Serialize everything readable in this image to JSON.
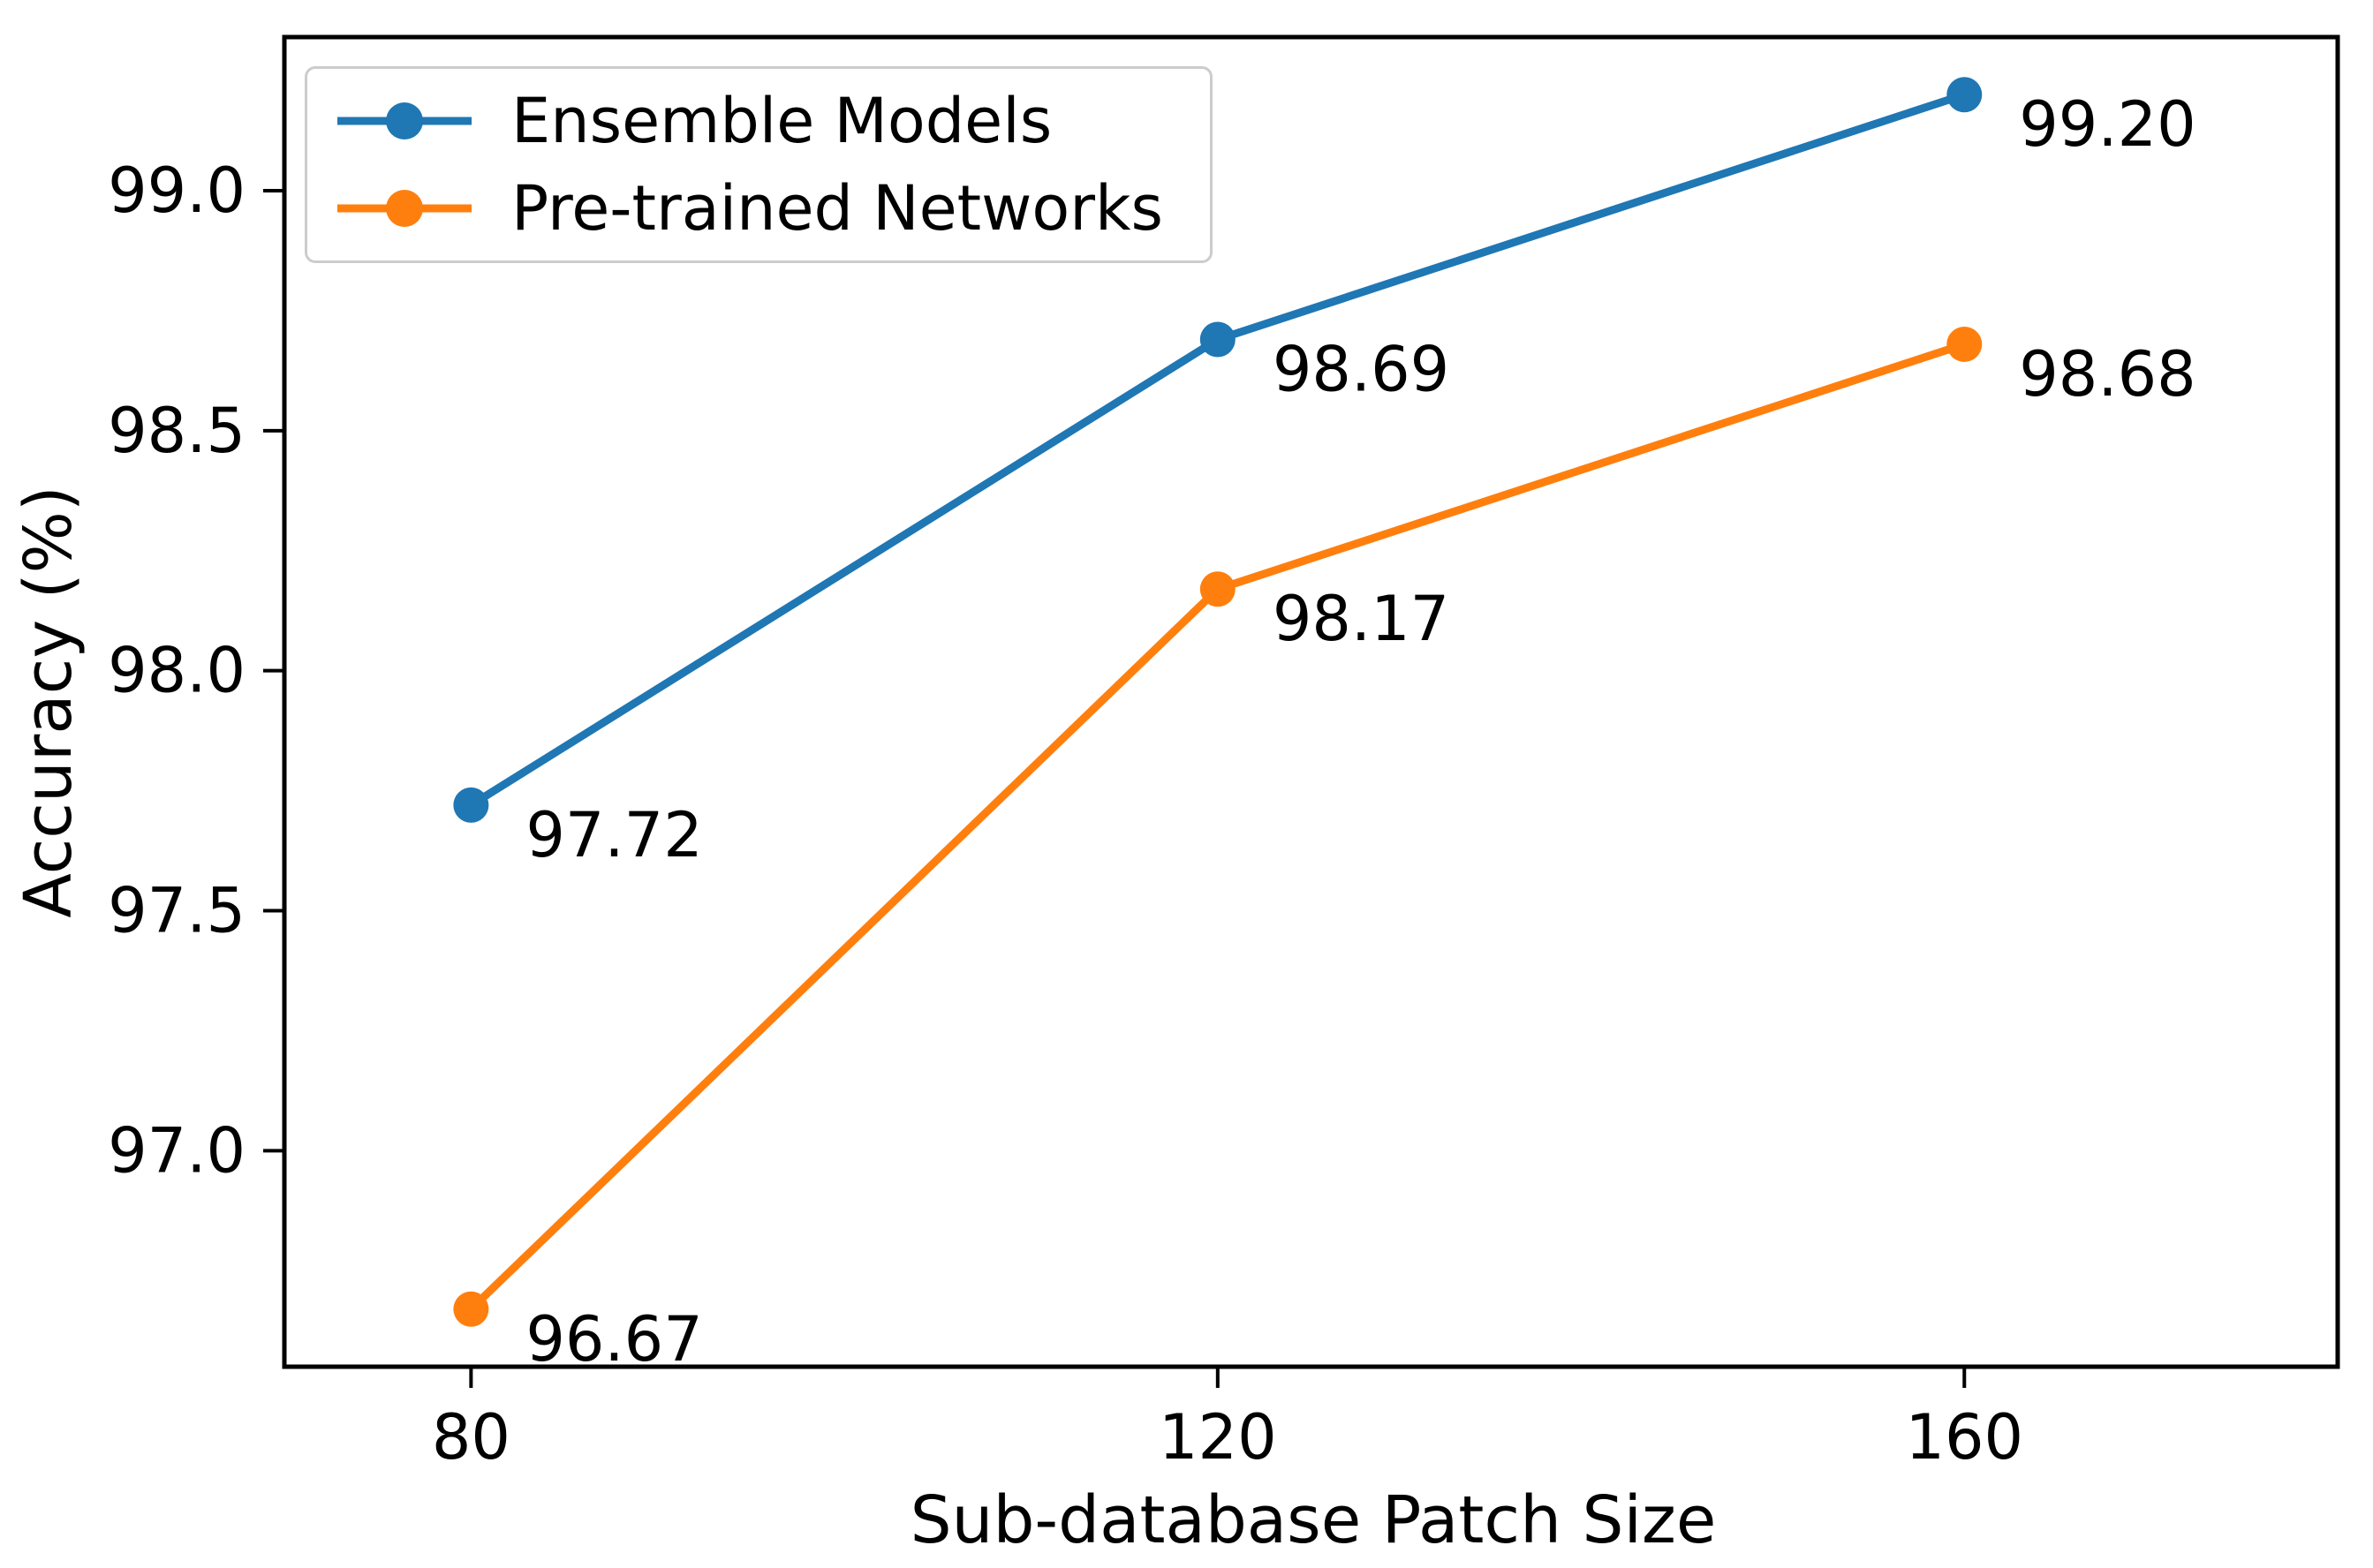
{
  "figure": {
    "background": "#ffffff"
  },
  "chart_data": {
    "type": "line",
    "title": "",
    "xlabel": "Sub-database Patch Size",
    "ylabel": "Accuracy (%)",
    "x": [
      80,
      120,
      160
    ],
    "xtick_labels": [
      "80",
      "120",
      "160"
    ],
    "yticks": [
      97.0,
      97.5,
      98.0,
      98.5,
      99.0
    ],
    "ytick_labels": [
      "97.0",
      "97.5",
      "98.0",
      "98.5",
      "99.0"
    ],
    "xlim": [
      70,
      180
    ],
    "ylim": [
      96.55,
      99.32
    ],
    "grid": false,
    "legend_position": "upper left",
    "legend_border_color": "#cccccc",
    "axis_color": "#000000",
    "text_color": "#000000",
    "series": [
      {
        "name": "Ensemble Models",
        "color": "#1f77b4",
        "values": [
          97.72,
          98.69,
          99.2
        ],
        "point_labels": [
          "97.72",
          "98.69",
          "99.20"
        ]
      },
      {
        "name": "Pre-trained Networks",
        "color": "#ff7f0e",
        "values": [
          96.67,
          98.17,
          98.68
        ],
        "point_labels": [
          "96.67",
          "98.17",
          "98.68"
        ]
      }
    ]
  }
}
